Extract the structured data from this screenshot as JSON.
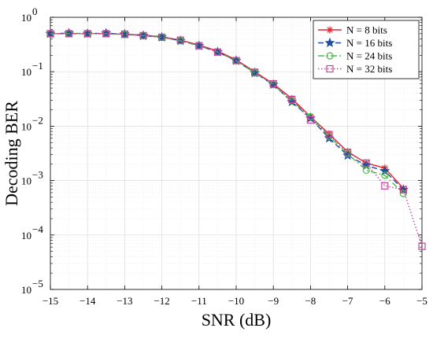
{
  "chart_data": {
    "type": "line",
    "title": "",
    "xlabel": "SNR (dB)",
    "ylabel": "Decoding BER",
    "xlim": [
      -15,
      -5
    ],
    "ylim": [
      1e-05,
      1
    ],
    "yscale": "log",
    "grid": true,
    "legend_position": "top-right",
    "x_ticks": [
      -15,
      -14,
      -13,
      -12,
      -11,
      -10,
      -9,
      -8,
      -7,
      -6,
      -5
    ],
    "x_tick_labels": [
      "−15",
      "−14",
      "−13",
      "−12",
      "−11",
      "−10",
      "−9",
      "−8",
      "−7",
      "−6",
      "−5"
    ],
    "y_tick_exponents": [
      -5,
      -4,
      -3,
      -2,
      -1,
      0
    ],
    "y_tick_base": "10",
    "series": [
      {
        "name": "N = 8 bits",
        "color": "#e8212a",
        "dash": "solid",
        "marker": "asterisk",
        "x": [
          -15,
          -14.5,
          -14,
          -13.5,
          -13,
          -12.5,
          -12,
          -11.5,
          -11,
          -10.5,
          -10,
          -9.5,
          -9,
          -8.5,
          -8,
          -7.5,
          -7,
          -6.5,
          -6,
          -5.5
        ],
        "y": [
          0.5,
          0.5,
          0.5,
          0.5,
          0.49,
          0.47,
          0.44,
          0.38,
          0.31,
          0.24,
          0.165,
          0.1,
          0.06,
          0.032,
          0.015,
          0.0072,
          0.0034,
          0.0021,
          0.0017,
          0.00072
        ]
      },
      {
        "name": "N = 16 bits",
        "color": "#1f4e9f",
        "dash": "dashed",
        "marker": "star",
        "x": [
          -15,
          -14.5,
          -14,
          -13.5,
          -13,
          -12.5,
          -12,
          -11.5,
          -11,
          -10.5,
          -10,
          -9.5,
          -9,
          -8.5,
          -8,
          -7.5,
          -7,
          -6.5,
          -6,
          -5.5
        ],
        "y": [
          0.5,
          0.51,
          0.5,
          0.51,
          0.49,
          0.46,
          0.43,
          0.37,
          0.3,
          0.23,
          0.16,
          0.095,
          0.058,
          0.028,
          0.014,
          0.006,
          0.0029,
          0.0019,
          0.0015,
          0.00068
        ]
      },
      {
        "name": "N = 24 bits",
        "color": "#4db848",
        "dash": "dashdot",
        "marker": "circle",
        "x": [
          -15,
          -14.5,
          -14,
          -13.5,
          -13,
          -12.5,
          -12,
          -11.5,
          -11,
          -10.5,
          -10,
          -9.5,
          -9,
          -8.5,
          -8,
          -7.5,
          -7,
          -6.5,
          -6,
          -5.5
        ],
        "y": [
          0.5,
          0.5,
          0.5,
          0.5,
          0.48,
          0.46,
          0.43,
          0.37,
          0.3,
          0.23,
          0.16,
          0.095,
          0.058,
          0.029,
          0.015,
          0.0065,
          0.0031,
          0.00155,
          0.00125,
          0.00058
        ]
      },
      {
        "name": "N = 32 bits",
        "color": "#c2459c",
        "dash": "dotted",
        "marker": "square",
        "x": [
          -15,
          -14.5,
          -14,
          -13.5,
          -13,
          -12.5,
          -12,
          -11.5,
          -11,
          -10.5,
          -10,
          -9.5,
          -9,
          -8.5,
          -8,
          -7.5,
          -7,
          -6.5,
          -6,
          -5.5,
          -5
        ],
        "y": [
          0.5,
          0.5,
          0.5,
          0.5,
          0.49,
          0.46,
          0.43,
          0.38,
          0.3,
          0.23,
          0.16,
          0.098,
          0.06,
          0.031,
          0.013,
          0.007,
          0.0033,
          0.0021,
          0.0008,
          0.00068,
          6.2e-05
        ]
      }
    ]
  }
}
